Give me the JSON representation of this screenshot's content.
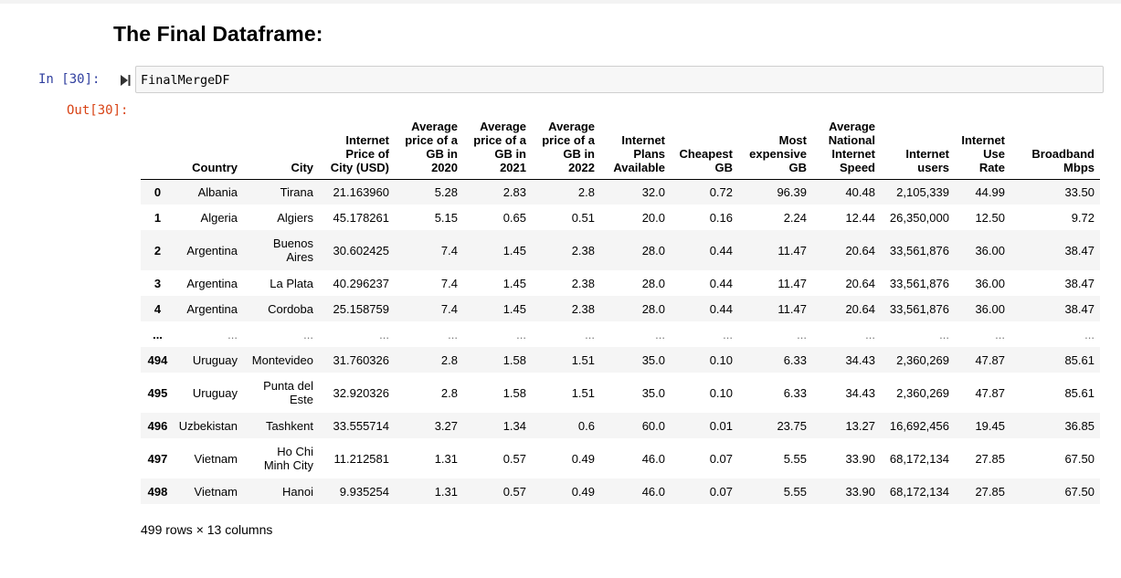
{
  "heading": "The Final Dataframe:",
  "in_prompt": "In [30]:",
  "out_prompt": "Out[30]:",
  "code": "FinalMergeDF",
  "columns": [
    {
      "l1": "",
      "l2": "",
      "l3": "",
      "l4": ""
    },
    {
      "l1": "",
      "l2": "",
      "l3": "",
      "l4": "Country"
    },
    {
      "l1": "",
      "l2": "",
      "l3": "",
      "l4": "City"
    },
    {
      "l1": "",
      "l2": "Internet",
      "l3": "Price of",
      "l4": "City (USD)"
    },
    {
      "l1": "Average",
      "l2": "price of a",
      "l3": "GB in",
      "l4": "2020"
    },
    {
      "l1": "Average",
      "l2": "price of a",
      "l3": "GB in",
      "l4": "2021"
    },
    {
      "l1": "Average",
      "l2": "price of a",
      "l3": "GB in",
      "l4": "2022"
    },
    {
      "l1": "",
      "l2": "Internet",
      "l3": "Plans",
      "l4": "Available"
    },
    {
      "l1": "",
      "l2": "",
      "l3": "Cheapest",
      "l4": "GB"
    },
    {
      "l1": "",
      "l2": "Most",
      "l3": "expensive",
      "l4": "GB"
    },
    {
      "l1": "Average",
      "l2": "National",
      "l3": "Internet",
      "l4": "Speed"
    },
    {
      "l1": "",
      "l2": "",
      "l3": "Internet",
      "l4": "users"
    },
    {
      "l1": "",
      "l2": "Internet",
      "l3": "Use",
      "l4": "Rate"
    },
    {
      "l1": "",
      "l2": "",
      "l3": "Broadband",
      "l4": "Mbps"
    }
  ],
  "rows": [
    {
      "index": "0",
      "country": "Albania",
      "city1": "Tirana",
      "city2": "",
      "price": "21.163960",
      "g2020": "5.28",
      "g2021": "2.83",
      "g2022": "2.8",
      "plans": "32.0",
      "cheap": "0.72",
      "exp": "96.39",
      "speed": "40.48",
      "users": "2,105,339",
      "rate": "44.99",
      "bb": "33.50"
    },
    {
      "index": "1",
      "country": "Algeria",
      "city1": "Algiers",
      "city2": "",
      "price": "45.178261",
      "g2020": "5.15",
      "g2021": "0.65",
      "g2022": "0.51",
      "plans": "20.0",
      "cheap": "0.16",
      "exp": "2.24",
      "speed": "12.44",
      "users": "26,350,000",
      "rate": "12.50",
      "bb": "9.72"
    },
    {
      "index": "2",
      "country": "Argentina",
      "city1": "Buenos",
      "city2": "Aires",
      "price": "30.602425",
      "g2020": "7.4",
      "g2021": "1.45",
      "g2022": "2.38",
      "plans": "28.0",
      "cheap": "0.44",
      "exp": "11.47",
      "speed": "20.64",
      "users": "33,561,876",
      "rate": "36.00",
      "bb": "38.47"
    },
    {
      "index": "3",
      "country": "Argentina",
      "city1": "La Plata",
      "city2": "",
      "price": "40.296237",
      "g2020": "7.4",
      "g2021": "1.45",
      "g2022": "2.38",
      "plans": "28.0",
      "cheap": "0.44",
      "exp": "11.47",
      "speed": "20.64",
      "users": "33,561,876",
      "rate": "36.00",
      "bb": "38.47"
    },
    {
      "index": "4",
      "country": "Argentina",
      "city1": "Cordoba",
      "city2": "",
      "price": "25.158759",
      "g2020": "7.4",
      "g2021": "1.45",
      "g2022": "2.38",
      "plans": "28.0",
      "cheap": "0.44",
      "exp": "11.47",
      "speed": "20.64",
      "users": "33,561,876",
      "rate": "36.00",
      "bb": "38.47"
    },
    {
      "index": "...",
      "country": "...",
      "city1": "...",
      "city2": "",
      "price": "...",
      "g2020": "...",
      "g2021": "...",
      "g2022": "...",
      "plans": "...",
      "cheap": "...",
      "exp": "...",
      "speed": "...",
      "users": "...",
      "rate": "...",
      "bb": "..."
    },
    {
      "index": "494",
      "country": "Uruguay",
      "city1": "Montevideo",
      "city2": "",
      "price": "31.760326",
      "g2020": "2.8",
      "g2021": "1.58",
      "g2022": "1.51",
      "plans": "35.0",
      "cheap": "0.10",
      "exp": "6.33",
      "speed": "34.43",
      "users": "2,360,269",
      "rate": "47.87",
      "bb": "85.61"
    },
    {
      "index": "495",
      "country": "Uruguay",
      "city1": "Punta del",
      "city2": "Este",
      "price": "32.920326",
      "g2020": "2.8",
      "g2021": "1.58",
      "g2022": "1.51",
      "plans": "35.0",
      "cheap": "0.10",
      "exp": "6.33",
      "speed": "34.43",
      "users": "2,360,269",
      "rate": "47.87",
      "bb": "85.61"
    },
    {
      "index": "496",
      "country": "Uzbekistan",
      "city1": "Tashkent",
      "city2": "",
      "price": "33.555714",
      "g2020": "3.27",
      "g2021": "1.34",
      "g2022": "0.6",
      "plans": "60.0",
      "cheap": "0.01",
      "exp": "23.75",
      "speed": "13.27",
      "users": "16,692,456",
      "rate": "19.45",
      "bb": "36.85"
    },
    {
      "index": "497",
      "country": "Vietnam",
      "city1": "Ho Chi",
      "city2": "Minh City",
      "price": "11.212581",
      "g2020": "1.31",
      "g2021": "0.57",
      "g2022": "0.49",
      "plans": "46.0",
      "cheap": "0.07",
      "exp": "5.55",
      "speed": "33.90",
      "users": "68,172,134",
      "rate": "27.85",
      "bb": "67.50"
    },
    {
      "index": "498",
      "country": "Vietnam",
      "city1": "Hanoi",
      "city2": "",
      "price": "9.935254",
      "g2020": "1.31",
      "g2021": "0.57",
      "g2022": "0.49",
      "plans": "46.0",
      "cheap": "0.07",
      "exp": "5.55",
      "speed": "33.90",
      "users": "68,172,134",
      "rate": "27.85",
      "bb": "67.50"
    }
  ],
  "footer": "499 rows × 13 columns",
  "colors": {
    "in_prompt": "#303f9f",
    "out_prompt": "#d84315",
    "stripe": "#f5f5f5",
    "input_bg": "#f7f7f7"
  },
  "icons": {
    "run": "run-cell-icon"
  }
}
